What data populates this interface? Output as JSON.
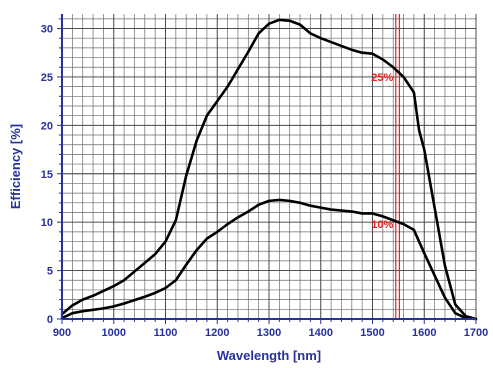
{
  "chart_data": {
    "type": "line",
    "xlabel": "Wavelength [nm]",
    "ylabel": "Efficiency [%]",
    "xlim": [
      900,
      1700
    ],
    "ylim": [
      0,
      31.5
    ],
    "x_ticks": [
      900,
      1000,
      1100,
      1200,
      1300,
      1400,
      1500,
      1600,
      1700
    ],
    "y_ticks": [
      0,
      5,
      10,
      15,
      20,
      25,
      30
    ],
    "x_minor_step": 20,
    "y_minor_step": 1,
    "grid": true,
    "colors": {
      "axis": "#26329a",
      "grid": "#6a6a6a",
      "series": "#000000",
      "marker": "#e8231f"
    },
    "series": [
      {
        "points": [
          [
            900,
            0.5
          ],
          [
            920,
            1.4
          ],
          [
            940,
            2.0
          ],
          [
            960,
            2.4
          ],
          [
            980,
            2.9
          ],
          [
            1000,
            3.4
          ],
          [
            1020,
            4.0
          ],
          [
            1040,
            4.9
          ],
          [
            1060,
            5.8
          ],
          [
            1080,
            6.7
          ],
          [
            1100,
            8.0
          ],
          [
            1120,
            10.2
          ],
          [
            1140,
            14.8
          ],
          [
            1160,
            18.4
          ],
          [
            1180,
            21.0
          ],
          [
            1200,
            22.5
          ],
          [
            1220,
            24.0
          ],
          [
            1240,
            25.8
          ],
          [
            1260,
            27.6
          ],
          [
            1280,
            29.5
          ],
          [
            1300,
            30.5
          ],
          [
            1320,
            30.9
          ],
          [
            1340,
            30.8
          ],
          [
            1360,
            30.4
          ],
          [
            1380,
            29.5
          ],
          [
            1400,
            29.0
          ],
          [
            1420,
            28.6
          ],
          [
            1440,
            28.2
          ],
          [
            1460,
            27.8
          ],
          [
            1480,
            27.5
          ],
          [
            1500,
            27.4
          ],
          [
            1520,
            26.8
          ],
          [
            1540,
            26.0
          ],
          [
            1560,
            25.0
          ],
          [
            1580,
            23.4
          ],
          [
            1590,
            19.5
          ],
          [
            1600,
            17.5
          ],
          [
            1620,
            11.5
          ],
          [
            1640,
            5.5
          ],
          [
            1660,
            1.5
          ],
          [
            1680,
            0.3
          ],
          [
            1700,
            0.0
          ]
        ]
      },
      {
        "points": [
          [
            900,
            0.1
          ],
          [
            920,
            0.6
          ],
          [
            940,
            0.8
          ],
          [
            960,
            0.95
          ],
          [
            980,
            1.1
          ],
          [
            1000,
            1.3
          ],
          [
            1020,
            1.6
          ],
          [
            1040,
            1.95
          ],
          [
            1060,
            2.3
          ],
          [
            1080,
            2.7
          ],
          [
            1100,
            3.2
          ],
          [
            1120,
            4.0
          ],
          [
            1140,
            5.6
          ],
          [
            1160,
            7.1
          ],
          [
            1180,
            8.3
          ],
          [
            1200,
            9.0
          ],
          [
            1220,
            9.8
          ],
          [
            1240,
            10.5
          ],
          [
            1260,
            11.1
          ],
          [
            1280,
            11.8
          ],
          [
            1300,
            12.2
          ],
          [
            1320,
            12.3
          ],
          [
            1340,
            12.2
          ],
          [
            1360,
            12.0
          ],
          [
            1380,
            11.7
          ],
          [
            1400,
            11.5
          ],
          [
            1420,
            11.3
          ],
          [
            1440,
            11.2
          ],
          [
            1460,
            11.1
          ],
          [
            1480,
            10.9
          ],
          [
            1500,
            10.9
          ],
          [
            1520,
            10.6
          ],
          [
            1540,
            10.2
          ],
          [
            1560,
            9.8
          ],
          [
            1580,
            9.2
          ],
          [
            1590,
            8.0
          ],
          [
            1600,
            6.8
          ],
          [
            1620,
            4.5
          ],
          [
            1640,
            2.2
          ],
          [
            1660,
            0.6
          ],
          [
            1680,
            0.1
          ],
          [
            1700,
            0.0
          ]
        ]
      }
    ],
    "reference_lines": [
      {
        "orientation": "vertical",
        "x": 1545
      },
      {
        "orientation": "vertical",
        "x": 1552
      }
    ],
    "annotations": [
      {
        "text": "25%",
        "x": 1548,
        "y": 25.0
      },
      {
        "text": "10%",
        "x": 1548,
        "y": 9.8
      }
    ]
  }
}
